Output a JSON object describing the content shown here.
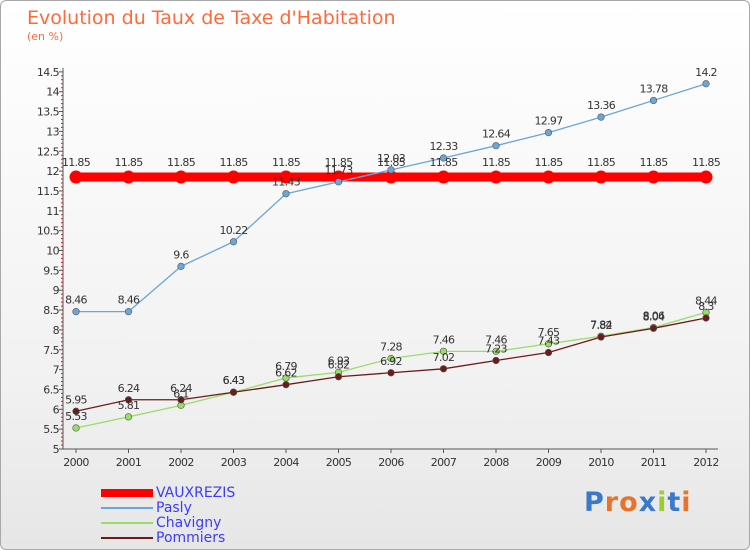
{
  "header": {
    "title": "Evolution du Taux de Taxe d'Habitation",
    "subtitle": "(en %)"
  },
  "logo": {
    "text": "Proxiti"
  },
  "chart_data": {
    "type": "line",
    "title": "Evolution du Taux de Taxe d'Habitation",
    "ylabel": "(en %)",
    "xlabel": "",
    "ylim": [
      5,
      14.5
    ],
    "ytick_step": 0.5,
    "grid": false,
    "legend_position": "bottom-left",
    "categories": [
      "2000",
      "2001",
      "2002",
      "2003",
      "2004",
      "2005",
      "2006",
      "2007",
      "2008",
      "2009",
      "2010",
      "2011",
      "2012"
    ],
    "series": [
      {
        "name": "VAUXREZIS",
        "color": "#ff0000",
        "values": [
          11.85,
          11.85,
          11.85,
          11.85,
          11.85,
          11.85,
          11.85,
          11.85,
          11.85,
          11.85,
          11.85,
          11.85,
          11.85
        ],
        "labels": [
          "11.85",
          "11.85",
          "11.85",
          "11.85",
          "11.85",
          "11.85",
          "11.85",
          "11.85",
          "11.85",
          "11.85",
          "11.85",
          "11.85",
          "11.85"
        ]
      },
      {
        "name": "Pasly",
        "color": "#6aa6d8",
        "values": [
          8.46,
          8.46,
          9.6,
          10.22,
          11.43,
          11.73,
          12.03,
          12.33,
          12.64,
          12.97,
          13.36,
          13.78,
          14.2
        ],
        "labels": [
          "8.46",
          "8.46",
          "9.6",
          "10.22",
          "11.43",
          "11.73",
          "12.03",
          "12.33",
          "12.64",
          "12.97",
          "13.36",
          "13.78",
          "14.2"
        ]
      },
      {
        "name": "Chavigny",
        "color": "#99dd66",
        "values": [
          5.53,
          5.81,
          6.1,
          6.43,
          6.79,
          6.93,
          7.28,
          7.46,
          7.46,
          7.65,
          7.84,
          8.06,
          8.44
        ],
        "labels": [
          "5.53",
          "5.81",
          "6.1",
          "6.43",
          "6.79",
          "6.93",
          "7.28",
          "7.46",
          "7.46",
          "7.65",
          "7.84",
          "8.06",
          "8.44"
        ]
      },
      {
        "name": "Pommiers",
        "color": "#6b1b1b",
        "values": [
          5.95,
          6.24,
          6.24,
          6.43,
          6.62,
          6.82,
          6.92,
          7.02,
          7.23,
          7.43,
          7.82,
          8.04,
          8.3
        ],
        "labels": [
          "5.95",
          "6.24",
          "6.24",
          "6.43",
          "6.62",
          "6.82",
          "6.92",
          "7.02",
          "7.23",
          "7.43",
          "7.82",
          "8.04",
          "8.3"
        ]
      }
    ]
  }
}
